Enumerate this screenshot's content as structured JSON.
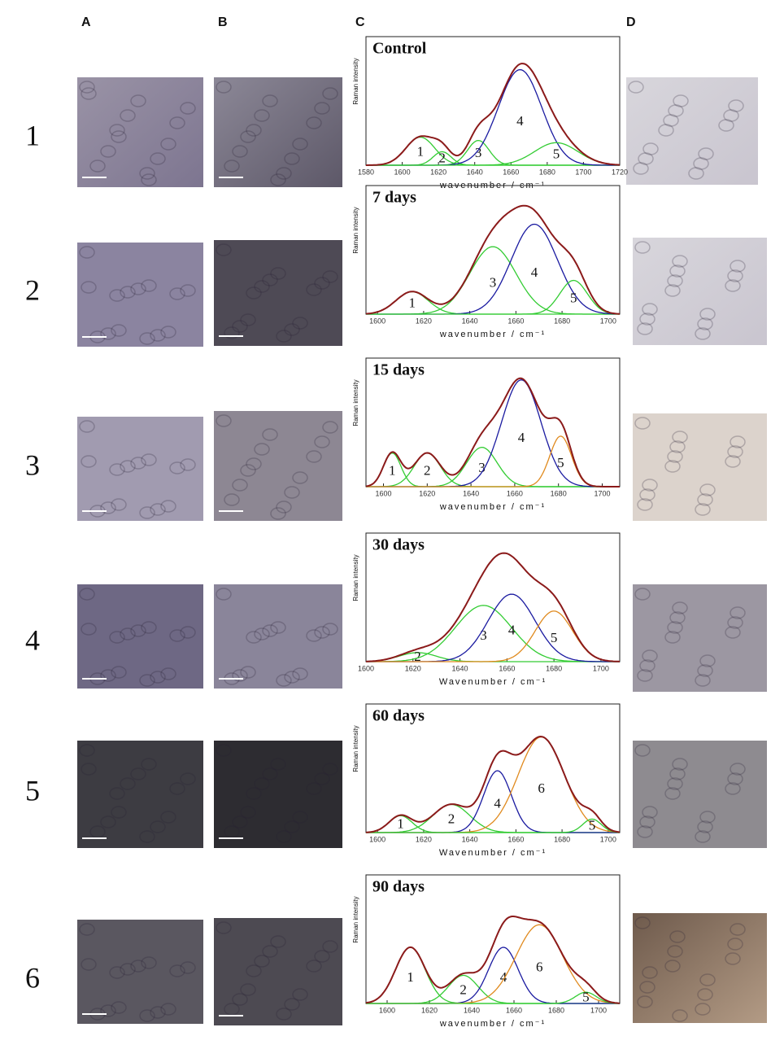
{
  "columns": [
    "A",
    "B",
    "C",
    "D"
  ],
  "rows": [
    "1",
    "2",
    "3",
    "4",
    "5",
    "6"
  ],
  "chart_data": [
    {
      "type": "spectrum",
      "title": "Control",
      "xlabel": "wavenumber / cm⁻¹",
      "ylabel": "Raman intensity",
      "xlim": [
        1580,
        1720
      ],
      "xticks": [
        1580,
        1600,
        1620,
        1640,
        1660,
        1680,
        1700,
        1720
      ],
      "ylim": [
        0,
        1.1
      ],
      "envelope_color": "#8b1a1a",
      "peaks": [
        {
          "label": "1",
          "center": 1610,
          "height": 0.25,
          "width": 8,
          "color": "#33cc33"
        },
        {
          "label": "2",
          "center": 1622,
          "height": 0.12,
          "width": 5,
          "color": "#33cc33"
        },
        {
          "label": "3",
          "center": 1642,
          "height": 0.22,
          "width": 6,
          "color": "#33cc33"
        },
        {
          "label": "4",
          "center": 1665,
          "height": 0.85,
          "width": 12,
          "color": "#1a1aa0"
        },
        {
          "label": "5",
          "center": 1685,
          "height": 0.2,
          "width": 12,
          "color": "#33cc33"
        }
      ]
    },
    {
      "type": "spectrum",
      "title": "7 days",
      "xlabel": "wavenumber / cm⁻¹",
      "ylabel": "Raman intensity",
      "xlim": [
        1595,
        1705
      ],
      "xticks": [
        1600,
        1620,
        1640,
        1660,
        1680,
        1700
      ],
      "ylim": [
        0,
        1.1
      ],
      "envelope_color": "#8b1a1a",
      "peaks": [
        {
          "label": "1",
          "center": 1615,
          "height": 0.2,
          "width": 7,
          "color": "#33cc33"
        },
        {
          "label": "3",
          "center": 1650,
          "height": 0.6,
          "width": 10,
          "color": "#33cc33"
        },
        {
          "label": "4",
          "center": 1668,
          "height": 0.8,
          "width": 10,
          "color": "#1a1aa0"
        },
        {
          "label": "5",
          "center": 1685,
          "height": 0.3,
          "width": 6,
          "color": "#33cc33"
        }
      ]
    },
    {
      "type": "spectrum",
      "title": "15 days",
      "xlabel": "wavenumber / cm⁻¹",
      "ylabel": "Raman intensity",
      "xlim": [
        1592,
        1708
      ],
      "xticks": [
        1600,
        1620,
        1640,
        1660,
        1680,
        1700
      ],
      "ylim": [
        0,
        1.1
      ],
      "envelope_color": "#8b1a1a",
      "peaks": [
        {
          "label": "1",
          "center": 1604,
          "height": 0.3,
          "width": 4,
          "color": "#33cc33"
        },
        {
          "label": "2",
          "center": 1620,
          "height": 0.3,
          "width": 6,
          "color": "#33cc33"
        },
        {
          "label": "3",
          "center": 1645,
          "height": 0.35,
          "width": 7,
          "color": "#33cc33"
        },
        {
          "label": "4",
          "center": 1663,
          "height": 0.95,
          "width": 9,
          "color": "#1a1aa0"
        },
        {
          "label": "5",
          "center": 1681,
          "height": 0.45,
          "width": 5,
          "color": "#e08a1e"
        }
      ]
    },
    {
      "type": "spectrum",
      "title": "30 days",
      "xlabel": "Wavenumber / cm⁻¹",
      "ylabel": "Raman intensity",
      "xlim": [
        1600,
        1708
      ],
      "xticks": [
        1600,
        1620,
        1640,
        1660,
        1680,
        1700
      ],
      "ylim": [
        0,
        1.1
      ],
      "envelope_color": "#8b1a1a",
      "peaks": [
        {
          "label": "2",
          "center": 1622,
          "height": 0.08,
          "width": 8,
          "color": "#33cc33"
        },
        {
          "label": "3",
          "center": 1650,
          "height": 0.5,
          "width": 12,
          "color": "#33cc33"
        },
        {
          "label": "4",
          "center": 1662,
          "height": 0.6,
          "width": 10,
          "color": "#1a1aa0"
        },
        {
          "label": "5",
          "center": 1680,
          "height": 0.45,
          "width": 8,
          "color": "#e08a1e"
        }
      ]
    },
    {
      "type": "spectrum",
      "title": "60 days",
      "xlabel": "Wavenumber / cm⁻¹",
      "ylabel": "Raman intensity",
      "xlim": [
        1595,
        1705
      ],
      "xticks": [
        1600,
        1620,
        1640,
        1660,
        1680,
        1700
      ],
      "ylim": [
        0,
        1.1
      ],
      "envelope_color": "#8b1a1a",
      "peaks": [
        {
          "label": "1",
          "center": 1610,
          "height": 0.15,
          "width": 5,
          "color": "#33cc33"
        },
        {
          "label": "2",
          "center": 1632,
          "height": 0.25,
          "width": 8,
          "color": "#33cc33"
        },
        {
          "label": "4",
          "center": 1652,
          "height": 0.55,
          "width": 6,
          "color": "#1a1aa0"
        },
        {
          "label": "6",
          "center": 1671,
          "height": 0.85,
          "width": 10,
          "color": "#e08a1e"
        },
        {
          "label": "5",
          "center": 1693,
          "height": 0.12,
          "width": 4,
          "color": "#33cc33"
        }
      ]
    },
    {
      "type": "spectrum",
      "title": "90 days",
      "xlabel": "wavenumber / cm⁻¹",
      "ylabel": "Raman intensity",
      "xlim": [
        1590,
        1710
      ],
      "xticks": [
        1600,
        1620,
        1640,
        1660,
        1680,
        1700
      ],
      "ylim": [
        0,
        1.1
      ],
      "envelope_color": "#8b1a1a",
      "peaks": [
        {
          "label": "1",
          "center": 1611,
          "height": 0.5,
          "width": 7,
          "color": "#33cc33"
        },
        {
          "label": "2",
          "center": 1636,
          "height": 0.25,
          "width": 7,
          "color": "#33cc33"
        },
        {
          "label": "4",
          "center": 1655,
          "height": 0.5,
          "width": 7,
          "color": "#1a1aa0"
        },
        {
          "label": "6",
          "center": 1672,
          "height": 0.7,
          "width": 11,
          "color": "#e08a1e"
        },
        {
          "label": "5",
          "center": 1694,
          "height": 0.1,
          "width": 5,
          "color": "#33cc33"
        }
      ]
    }
  ]
}
